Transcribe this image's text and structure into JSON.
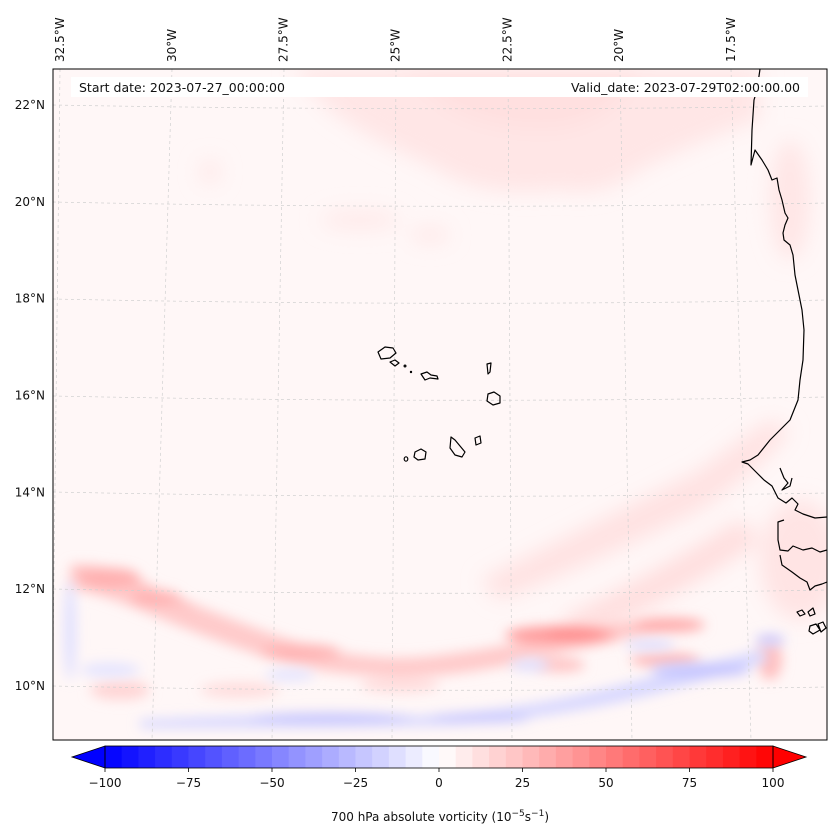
{
  "chart_data": {
    "type": "heatmap",
    "title": "",
    "projection": "Lambert conformal (curved graticule)",
    "map_extent": {
      "lon_min": -32.8,
      "lon_max": -15.8,
      "lat_min": 8.8,
      "lat_max": 22.8
    },
    "x_ticks": [
      "32.5°W",
      "30°W",
      "27.5°W",
      "25°W",
      "22.5°W",
      "20°W",
      "17.5°W"
    ],
    "x_tick_values": [
      -32.5,
      -30,
      -27.5,
      -25,
      -22.5,
      -20,
      -17.5
    ],
    "y_ticks": [
      "22°N",
      "20°N",
      "18°N",
      "16°N",
      "14°N",
      "12°N",
      "10°N"
    ],
    "y_tick_values": [
      22,
      20,
      18,
      16,
      14,
      12,
      10
    ],
    "grid": true,
    "annotations": {
      "start_date": "Start date: 2023-07-27_00:00:00",
      "valid_date": "Valid_date: 2023-07-29T02:00:00.00"
    },
    "colorbar": {
      "label": "700 hPa absolute vorticity (10⁻⁵s⁻¹)",
      "label_main": "700 hPa absolute vorticity (10",
      "label_exp1": "−5",
      "label_mid": "s",
      "label_exp2": "−1",
      "label_end": ")",
      "colormap": "bwr",
      "range": [
        -100,
        100
      ],
      "step": 5,
      "extend": "both",
      "orientation": "horizontal",
      "placement": "bottom",
      "ticks": [
        -100,
        -75,
        -50,
        -25,
        0,
        25,
        50,
        75,
        100
      ],
      "tick_labels": [
        "−100",
        "−75",
        "−50",
        "−25",
        "0",
        "25",
        "50",
        "75",
        "100"
      ]
    },
    "features": [
      {
        "name": "positive vorticity band",
        "lat_range": [
          10.5,
          12.5
        ],
        "lon_range": [
          -32.5,
          -17
        ],
        "approx_max": 30
      },
      {
        "name": "negative vorticity band",
        "lat_range": [
          9.2,
          10.3
        ],
        "lon_range": [
          -30,
          -17.5
        ],
        "approx_min": -25
      },
      {
        "name": "weak positive broad area north",
        "lat_range": [
          19.5,
          22.5
        ],
        "lon_range": [
          -28,
          -17
        ],
        "approx_value": 5
      }
    ],
    "coastlines": [
      "Cape Verde islands",
      "West African coast (Western Sahara, Mauritania, Senegal, Gambia, Guinea-Bissau)"
    ]
  }
}
